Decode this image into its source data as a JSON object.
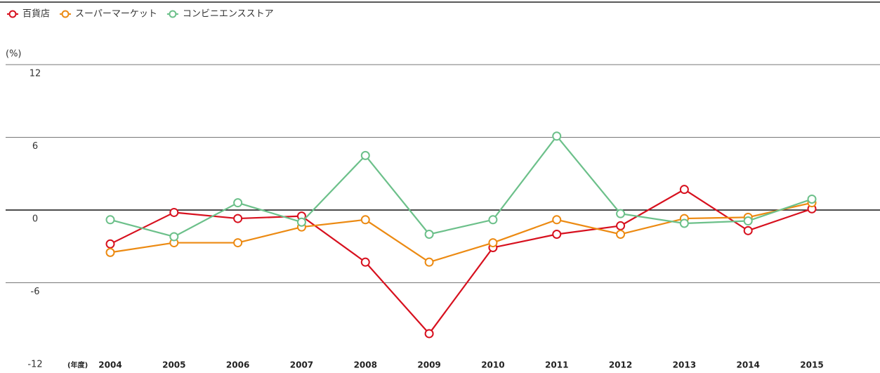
{
  "chart_data": {
    "type": "line",
    "ylabel": "(%)",
    "xlabel": "(年度)",
    "categories": [
      "2004",
      "2005",
      "2006",
      "2007",
      "2008",
      "2009",
      "2010",
      "2011",
      "2012",
      "2013",
      "2014",
      "2015"
    ],
    "series": [
      {
        "name": "百貨店",
        "color": "#d7101e",
        "values": [
          -2.8,
          -0.2,
          -0.7,
          -0.5,
          -4.3,
          -10.2,
          -3.1,
          -2.0,
          -1.3,
          1.7,
          -1.7,
          0.1
        ]
      },
      {
        "name": "スーパーマーケット",
        "color": "#ec8a12",
        "values": [
          -3.5,
          -2.7,
          -2.7,
          -1.4,
          -0.8,
          -4.3,
          -2.7,
          -0.8,
          -2.0,
          -0.7,
          -0.6,
          0.6
        ]
      },
      {
        "name": "コンビニエンスストア",
        "color": "#6cc08a",
        "values": [
          -0.8,
          -2.2,
          0.6,
          -1.0,
          4.5,
          -2.0,
          -0.8,
          6.1,
          -0.3,
          -1.1,
          -0.9,
          0.9
        ]
      }
    ],
    "ylim": [
      -12,
      12
    ],
    "yticks": [
      -12,
      -6,
      0,
      6,
      12
    ],
    "grid": true,
    "legend": "top-left"
  }
}
